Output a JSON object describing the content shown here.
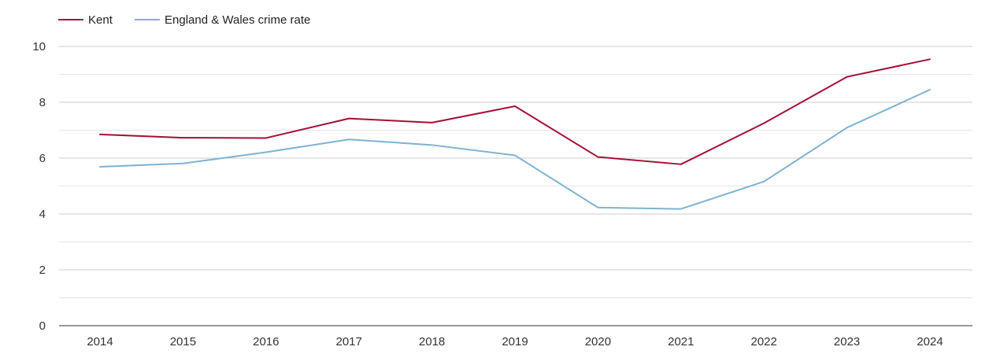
{
  "chart_data": {
    "type": "line",
    "title": "",
    "xlabel": "",
    "ylabel": "",
    "categories": [
      "2014",
      "2015",
      "2016",
      "2017",
      "2018",
      "2019",
      "2020",
      "2021",
      "2022",
      "2023",
      "2024"
    ],
    "ylim": [
      0,
      10
    ],
    "yticks": [
      "0",
      "2",
      "4",
      "6",
      "8",
      "10"
    ],
    "grid": true,
    "legend_position": "top-left",
    "series": [
      {
        "name": "Kent",
        "color": "#a50f34",
        "values": [
          6.85,
          6.73,
          6.72,
          7.42,
          7.27,
          7.86,
          6.04,
          5.78,
          7.25,
          8.91,
          9.54
        ]
      },
      {
        "name": "England & Wales crime rate",
        "color": "#7fb2d1",
        "values": [
          5.69,
          5.81,
          6.21,
          6.67,
          6.47,
          6.1,
          4.23,
          4.18,
          5.16,
          7.09,
          8.45
        ]
      }
    ]
  }
}
